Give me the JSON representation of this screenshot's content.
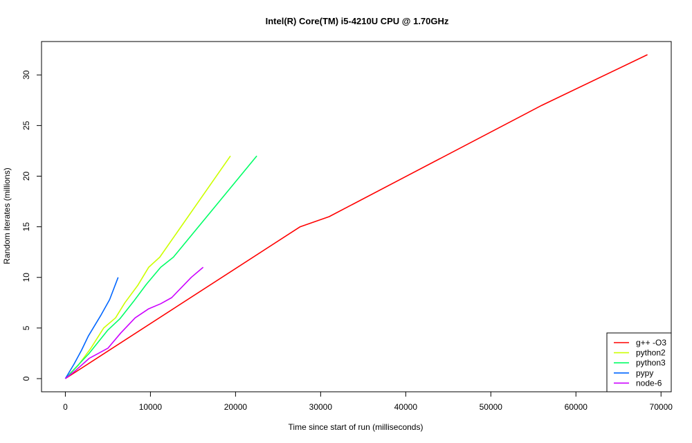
{
  "chart_data": {
    "type": "line",
    "title": "Intel(R) Core(TM) i5-4210U CPU @ 1.70GHz",
    "xlabel": "Time since start of run (milliseconds)",
    "ylabel": "Random iterates (millions)",
    "xlim": [
      -2800,
      71200
    ],
    "ylim": [
      -1.3,
      33.3
    ],
    "xticks": [
      0,
      10000,
      20000,
      30000,
      40000,
      50000,
      60000,
      70000
    ],
    "yticks": [
      0,
      5,
      10,
      15,
      20,
      25,
      30
    ],
    "grid": false,
    "legend_position": "bottom-right",
    "series": [
      {
        "name": "g++ -O3",
        "color": "#ff0000",
        "points": [
          [
            0,
            0
          ],
          [
            27600,
            15
          ],
          [
            31000,
            16
          ],
          [
            56000,
            27
          ],
          [
            68400,
            32
          ]
        ]
      },
      {
        "name": "python2",
        "color": "#ccff00",
        "points": [
          [
            0,
            0
          ],
          [
            1500,
            1.3
          ],
          [
            3000,
            3
          ],
          [
            4500,
            5
          ],
          [
            5900,
            6
          ],
          [
            7000,
            7.5
          ],
          [
            8500,
            9.2
          ],
          [
            9800,
            11
          ],
          [
            11100,
            12
          ],
          [
            19400,
            22
          ]
        ]
      },
      {
        "name": "python3",
        "color": "#00ff66",
        "points": [
          [
            0,
            0
          ],
          [
            2800,
            2.5
          ],
          [
            5000,
            4.8
          ],
          [
            6400,
            5.9
          ],
          [
            8000,
            7.6
          ],
          [
            9500,
            9.3
          ],
          [
            11200,
            11
          ],
          [
            12700,
            12
          ],
          [
            22500,
            22
          ]
        ]
      },
      {
        "name": "pypy",
        "color": "#0066ff",
        "points": [
          [
            0,
            0
          ],
          [
            1000,
            1.4
          ],
          [
            1900,
            2.8
          ],
          [
            2700,
            4.2
          ],
          [
            4200,
            6.3
          ],
          [
            5200,
            7.8
          ],
          [
            6200,
            10
          ]
        ]
      },
      {
        "name": "node-6",
        "color": "#cc00ff",
        "points": [
          [
            0,
            0
          ],
          [
            1200,
            0.8
          ],
          [
            2800,
            2
          ],
          [
            5000,
            3
          ],
          [
            6500,
            4.5
          ],
          [
            8200,
            6
          ],
          [
            9800,
            6.9
          ],
          [
            11200,
            7.4
          ],
          [
            12500,
            8
          ],
          [
            14800,
            10
          ],
          [
            16200,
            11
          ]
        ]
      }
    ]
  }
}
